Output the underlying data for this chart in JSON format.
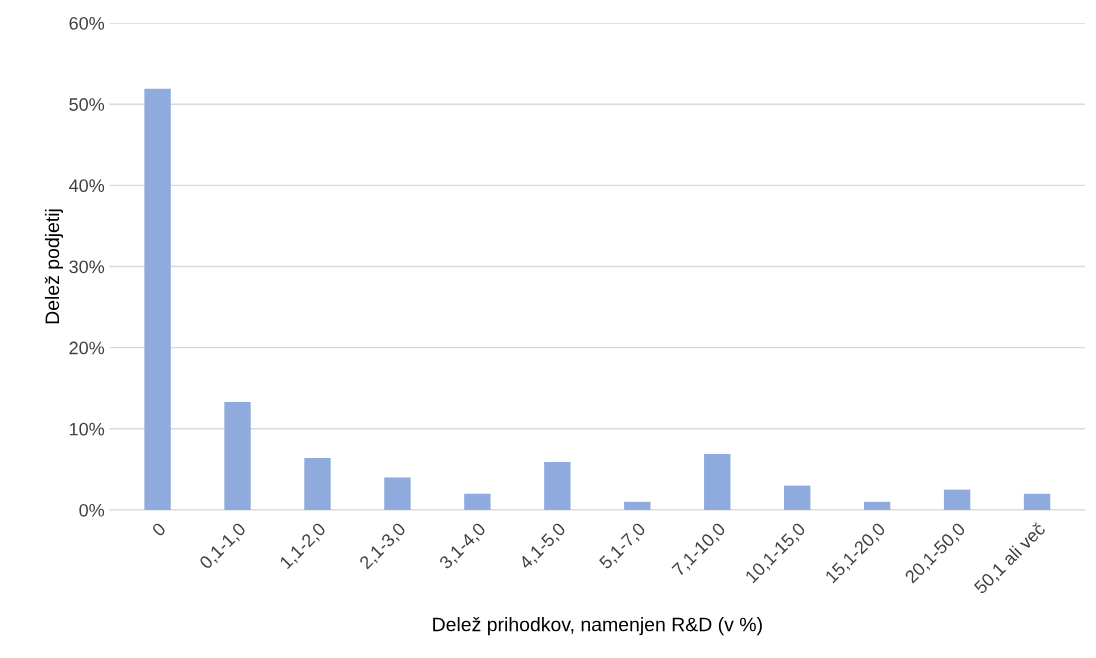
{
  "chart_data": {
    "type": "bar",
    "xlabel": "Delež prihodkov, namenjen R&D (v %)",
    "ylabel": "Delež podjetij",
    "categories": [
      "0",
      "0,1-1,0",
      "1,1-2,0",
      "2,1-3,0",
      "3,1-4,0",
      "4,1-5,0",
      "5,1-7,0",
      "7,1-10,0",
      "10,1-15,0",
      "15,1-20,0",
      "20,1-50,0",
      "50,1 ali več"
    ],
    "values": [
      51.9,
      13.3,
      6.4,
      4.0,
      2.0,
      5.9,
      1.0,
      6.9,
      3.0,
      1.0,
      2.5,
      2.0
    ],
    "color": "#8faadc",
    "ylim": [
      0,
      60
    ],
    "yticks": [
      {
        "value": 0,
        "label": "0%"
      },
      {
        "value": 10,
        "label": "10%"
      },
      {
        "value": 20,
        "label": "20%"
      },
      {
        "value": 30,
        "label": "30%"
      },
      {
        "value": 40,
        "label": "40%"
      },
      {
        "value": 50,
        "label": "50%"
      },
      {
        "value": 60,
        "label": "60%"
      }
    ],
    "grid": "y"
  }
}
